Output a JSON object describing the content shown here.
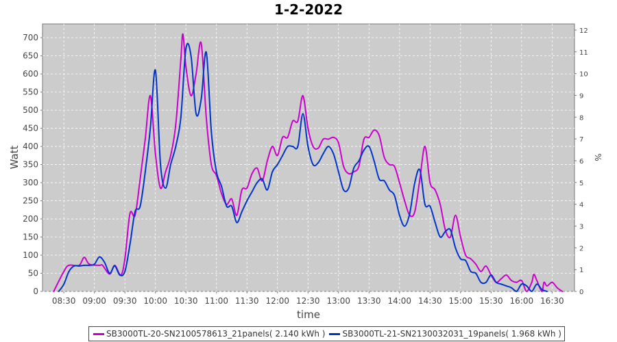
{
  "chart_data": {
    "type": "line",
    "title": "1-2-2022",
    "xlabel": "time",
    "ylabel": "Watt",
    "y2label": "%",
    "xlim": [
      "08:09",
      "16:52"
    ],
    "ylim": [
      0,
      738
    ],
    "y2lim": [
      0,
      12.28
    ],
    "grid": true,
    "legend_position": "bottom",
    "background": "#cccccc",
    "x_ticks": [
      "08:30",
      "09:00",
      "09:30",
      "10:00",
      "10:30",
      "11:00",
      "11:30",
      "12:00",
      "12:30",
      "13:00",
      "13:30",
      "14:00",
      "14:30",
      "15:00",
      "15:30",
      "16:00",
      "16:30"
    ],
    "y_ticks": [
      0,
      50,
      100,
      150,
      200,
      250,
      300,
      350,
      400,
      450,
      500,
      550,
      600,
      650,
      700
    ],
    "y2_ticks": [
      0,
      1,
      2,
      3,
      4,
      5,
      6,
      7,
      8,
      9,
      10,
      11,
      12
    ],
    "series": [
      {
        "name": "SB3000TL-20-SN2100578613_21panels( 2.140 kWh )",
        "color": "#cc00cc",
        "x": [
          "08:20",
          "08:30",
          "08:35",
          "08:45",
          "08:50",
          "08:55",
          "09:05",
          "09:08",
          "09:15",
          "09:20",
          "09:26",
          "09:30",
          "09:35",
          "09:40",
          "09:45",
          "09:50",
          "09:55",
          "10:00",
          "10:05",
          "10:10",
          "10:15",
          "10:20",
          "10:25",
          "10:27",
          "10:30",
          "10:35",
          "10:40",
          "10:45",
          "10:50",
          "10:55",
          "11:00",
          "11:05",
          "11:10",
          "11:15",
          "11:20",
          "11:25",
          "11:30",
          "11:35",
          "11:40",
          "11:45",
          "11:50",
          "11:55",
          "12:00",
          "12:05",
          "12:10",
          "12:15",
          "12:20",
          "12:25",
          "12:30",
          "12:35",
          "12:40",
          "12:45",
          "12:50",
          "12:55",
          "13:00",
          "13:05",
          "13:10",
          "13:15",
          "13:20",
          "13:25",
          "13:30",
          "13:35",
          "13:40",
          "13:45",
          "13:50",
          "13:55",
          "14:00",
          "14:05",
          "14:10",
          "14:15",
          "14:20",
          "14:25",
          "14:30",
          "14:35",
          "14:40",
          "14:45",
          "14:50",
          "14:55",
          "15:00",
          "15:05",
          "15:10",
          "15:15",
          "15:20",
          "15:25",
          "15:30",
          "15:35",
          "15:40",
          "15:45",
          "15:50",
          "15:55",
          "16:00",
          "16:05",
          "16:10",
          "16:12",
          "16:15",
          "16:20",
          "16:22",
          "16:25",
          "16:30",
          "16:35",
          "16:40"
        ],
        "values": [
          0,
          55,
          72,
          72,
          94,
          75,
          72,
          72,
          48,
          72,
          45,
          90,
          215,
          210,
          310,
          420,
          540,
          380,
          285,
          330,
          375,
          460,
          640,
          710,
          620,
          540,
          600,
          685,
          480,
          350,
          320,
          270,
          240,
          255,
          210,
          280,
          285,
          325,
          340,
          305,
          360,
          400,
          375,
          425,
          425,
          470,
          470,
          540,
          450,
          400,
          395,
          420,
          420,
          425,
          410,
          345,
          325,
          330,
          345,
          420,
          425,
          445,
          430,
          370,
          350,
          345,
          300,
          250,
          210,
          220,
          310,
          400,
          300,
          280,
          240,
          170,
          150,
          210,
          150,
          100,
          90,
          75,
          55,
          70,
          45,
          25,
          35,
          45,
          30,
          25,
          30,
          0,
          25,
          47,
          30,
          0,
          25,
          15,
          25,
          10,
          0
        ]
      },
      {
        "name": "SB3000TL-21-SN2130032031_19panels( 1.968 kWh )",
        "color": "#0033cc",
        "x": [
          "08:25",
          "08:30",
          "08:35",
          "08:40",
          "08:45",
          "08:50",
          "08:55",
          "09:00",
          "09:05",
          "09:10",
          "09:15",
          "09:20",
          "09:25",
          "09:30",
          "09:35",
          "09:40",
          "09:45",
          "09:50",
          "09:55",
          "10:00",
          "10:05",
          "10:10",
          "10:15",
          "10:20",
          "10:25",
          "10:30",
          "10:35",
          "10:40",
          "10:45",
          "10:50",
          "10:55",
          "11:00",
          "11:05",
          "11:10",
          "11:15",
          "11:20",
          "11:25",
          "11:30",
          "11:35",
          "11:40",
          "11:45",
          "11:50",
          "11:55",
          "12:00",
          "12:05",
          "12:10",
          "12:15",
          "12:20",
          "12:25",
          "12:30",
          "12:35",
          "12:40",
          "12:45",
          "12:50",
          "12:55",
          "13:00",
          "13:05",
          "13:10",
          "13:15",
          "13:20",
          "13:25",
          "13:30",
          "13:35",
          "13:40",
          "13:45",
          "13:50",
          "13:55",
          "14:00",
          "14:05",
          "14:10",
          "14:15",
          "14:20",
          "14:25",
          "14:30",
          "14:35",
          "14:40",
          "14:45",
          "14:50",
          "14:55",
          "15:00",
          "15:05",
          "15:10",
          "15:15",
          "15:20",
          "15:25",
          "15:30",
          "15:35",
          "15:40",
          "15:45",
          "15:50",
          "15:55",
          "16:00",
          "16:05",
          "16:10",
          "16:15",
          "16:20",
          "16:25"
        ],
        "values": [
          0,
          20,
          55,
          70,
          70,
          72,
          72,
          75,
          95,
          80,
          50,
          70,
          45,
          55,
          130,
          220,
          235,
          330,
          450,
          610,
          350,
          285,
          350,
          400,
          480,
          670,
          650,
          490,
          530,
          660,
          440,
          330,
          290,
          235,
          235,
          190,
          220,
          250,
          275,
          300,
          310,
          280,
          330,
          350,
          375,
          400,
          400,
          400,
          490,
          400,
          350,
          355,
          380,
          400,
          380,
          330,
          280,
          285,
          340,
          360,
          390,
          400,
          360,
          310,
          305,
          280,
          265,
          210,
          180,
          215,
          300,
          335,
          240,
          235,
          190,
          150,
          165,
          170,
          120,
          90,
          85,
          55,
          50,
          25,
          25,
          45,
          25,
          20,
          15,
          10,
          0,
          20,
          15,
          0,
          20,
          5,
          0
        ]
      }
    ]
  }
}
